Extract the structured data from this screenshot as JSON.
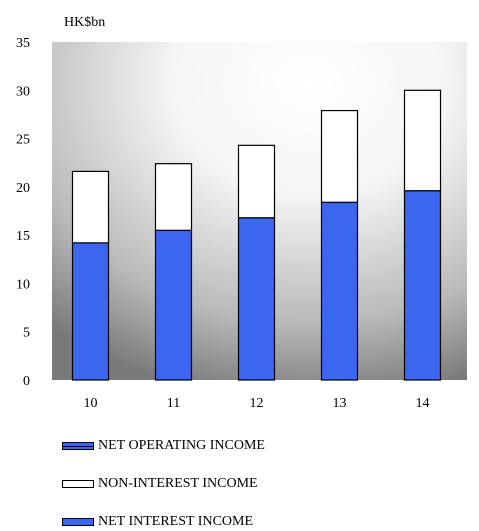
{
  "chart_data": {
    "type": "bar",
    "stacked": true,
    "unit_label": "HK$bn",
    "categories": [
      "10",
      "11",
      "12",
      "13",
      "14"
    ],
    "yticks": [
      "0",
      "5",
      "10",
      "15",
      "20",
      "25",
      "30",
      "35"
    ],
    "ylim": [
      0,
      35
    ],
    "series": [
      {
        "name": "NET INTEREST INCOME",
        "values": [
          14.2,
          15.5,
          16.8,
          18.4,
          19.6
        ],
        "color": "#3a66f0"
      },
      {
        "name": "NON-INTEREST INCOME",
        "values": [
          7.4,
          6.9,
          7.5,
          9.5,
          10.4
        ],
        "color": "#ffffff"
      }
    ],
    "totals_series_name": "NET OPERATING INCOME",
    "totals": [
      21.6,
      22.4,
      24.3,
      27.9,
      30.0
    ],
    "legend": {
      "position": "bottom",
      "entries": [
        "NET OPERATING INCOME",
        "NON-INTEREST INCOME",
        "NET INTEREST INCOME"
      ]
    },
    "background": "gray-white radial gradient",
    "grid": false
  }
}
